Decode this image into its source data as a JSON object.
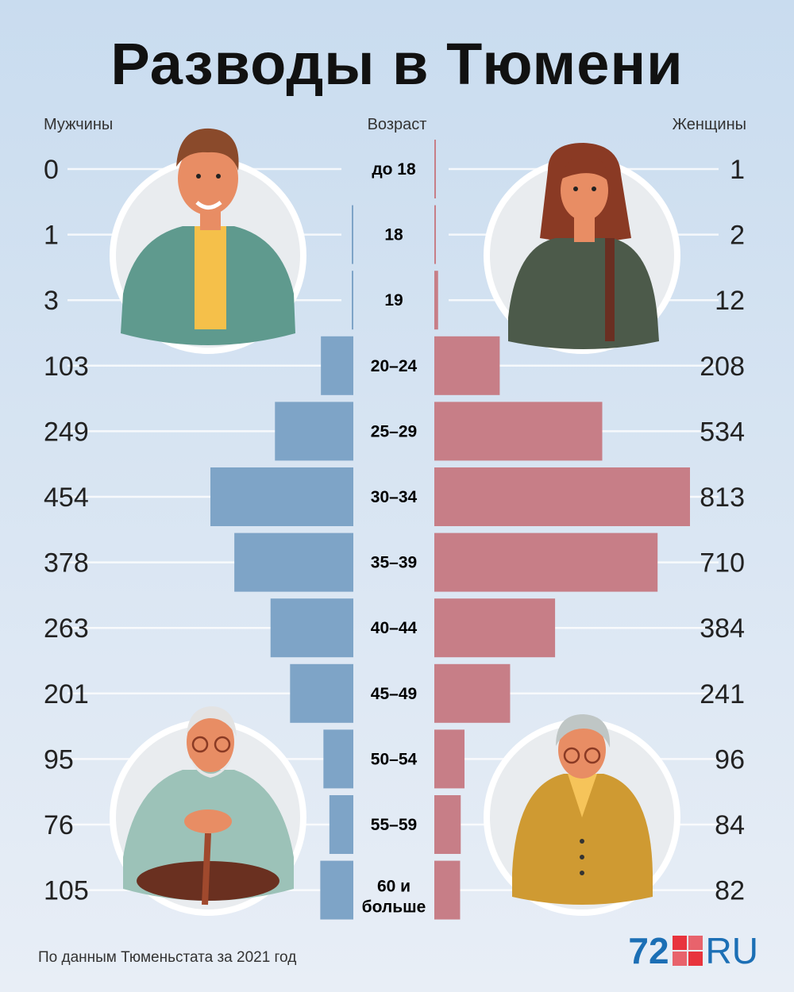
{
  "header": {
    "title": "Разводы в Тюмени",
    "left_label": "Мужчины",
    "center_label": "Возраст",
    "right_label": "Женщины"
  },
  "chart_data": {
    "type": "bar",
    "categories": [
      "до 18",
      "18",
      "19",
      "20–24",
      "25–29",
      "30–34",
      "35–39",
      "40–44",
      "45–49",
      "50–54",
      "55–59",
      "60 и больше"
    ],
    "series": [
      {
        "name": "Мужчины",
        "values": [
          0,
          1,
          3,
          103,
          249,
          454,
          378,
          263,
          201,
          95,
          76,
          105
        ],
        "color": "#7ea4c7"
      },
      {
        "name": "Женщины",
        "values": [
          1,
          2,
          12,
          208,
          534,
          813,
          710,
          384,
          241,
          96,
          84,
          82
        ],
        "color": "#c77e87"
      }
    ]
  },
  "footer": {
    "source": "По данным Тюменьстата за 2021 год",
    "logo_number": "72",
    "logo_suffix": "RU"
  }
}
